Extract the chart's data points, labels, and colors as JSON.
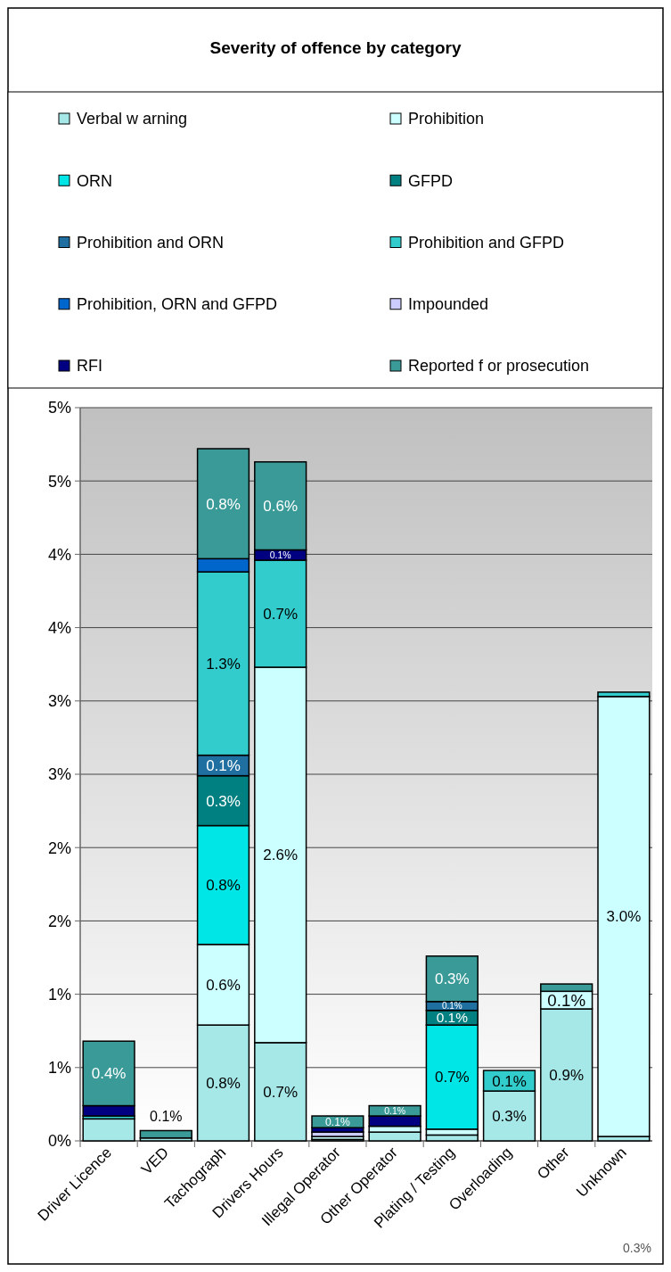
{
  "chart_data": {
    "type": "bar",
    "title": "Severity of offence by category",
    "stacked": true,
    "legend": "top",
    "grid": "y",
    "categories": [
      "Driver Licence",
      "VED",
      "Tachograph",
      "Drivers Hours",
      "Illegal Operator",
      "Other Operator",
      "Plating / Testing",
      "Overloading",
      "Other",
      "Unknown"
    ],
    "ylim": [
      0,
      5
    ],
    "yticks": [
      {
        "value": 0,
        "label": "0%"
      },
      {
        "value": 0.5,
        "label": "1%"
      },
      {
        "value": 1,
        "label": "1%"
      },
      {
        "value": 1.5,
        "label": "2%"
      },
      {
        "value": 2,
        "label": "2%"
      },
      {
        "value": 2.5,
        "label": "3%"
      },
      {
        "value": 3,
        "label": "3%"
      },
      {
        "value": 3.5,
        "label": "4%"
      },
      {
        "value": 4,
        "label": "4%"
      },
      {
        "value": 4.5,
        "label": "5%"
      },
      {
        "value": 5,
        "label": "5%"
      }
    ],
    "series": [
      {
        "name": "Verbal w arning",
        "color": "#a6e8e8",
        "values": [
          0.15,
          0.02,
          0.79,
          0.67,
          0.01,
          0.06,
          0.04,
          0.34,
          0.9,
          0.03
        ],
        "value_labels": [
          null,
          null,
          "0.8%",
          "0.7%",
          null,
          null,
          null,
          "0.3%",
          "0.9%",
          null
        ]
      },
      {
        "name": "Prohibition",
        "color": "#ccffff",
        "values": [
          null,
          null,
          0.55,
          2.56,
          0.02,
          0.04,
          0.04,
          null,
          0.12,
          3.0
        ],
        "value_labels": [
          null,
          null,
          "0.6%",
          "2.6%",
          null,
          null,
          null,
          null,
          "0.1%",
          "3.0%"
        ]
      },
      {
        "name": "ORN",
        "color": "#00e6e6",
        "values": [
          null,
          null,
          0.81,
          null,
          null,
          null,
          0.71,
          null,
          null,
          null
        ],
        "value_labels": [
          null,
          null,
          "0.8%",
          null,
          null,
          null,
          "0.7%",
          null,
          null,
          null
        ]
      },
      {
        "name": "GFPD",
        "color": "#008080",
        "values": [
          null,
          null,
          0.34,
          null,
          null,
          null,
          0.1,
          null,
          null,
          null
        ],
        "value_labels": [
          null,
          null,
          "0.3%",
          null,
          null,
          null,
          "0.1%",
          null,
          null,
          null
        ]
      },
      {
        "name": "Prohibition and ORN",
        "color": "#1f6fa0",
        "values": [
          null,
          null,
          0.14,
          null,
          null,
          null,
          0.06,
          null,
          null,
          null
        ],
        "value_labels": [
          null,
          null,
          "0.1%",
          null,
          null,
          null,
          "0.1%",
          null,
          null,
          null
        ]
      },
      {
        "name": "Prohibition and GFPD",
        "color": "#33cccc",
        "values": [
          0.02,
          null,
          1.25,
          0.73,
          null,
          null,
          null,
          0.14,
          null,
          0.03
        ],
        "value_labels": [
          null,
          null,
          "1.3%",
          "0.7%",
          null,
          null,
          null,
          "0.1%",
          null,
          null
        ]
      },
      {
        "name": "Prohibition, ORN and GFPD",
        "color": "#0066cc",
        "values": [
          null,
          null,
          0.09,
          null,
          null,
          null,
          null,
          null,
          null,
          null
        ]
      },
      {
        "name": "Impounded",
        "color": "#ccccff",
        "values": [
          null,
          null,
          null,
          null,
          0.03,
          null,
          null,
          null,
          null,
          null
        ]
      },
      {
        "name": "RFI",
        "color": "#000080",
        "values": [
          0.07,
          null,
          null,
          0.07,
          0.03,
          0.07,
          null,
          null,
          null,
          null
        ],
        "value_labels": [
          null,
          null,
          null,
          "0.1%",
          null,
          null,
          null,
          null,
          null,
          null
        ]
      },
      {
        "name": "Reported f or prosecution",
        "color": "#3a9a98",
        "values": [
          0.44,
          0.05,
          0.75,
          0.6,
          0.08,
          0.07,
          0.31,
          null,
          0.05,
          null
        ],
        "value_labels": [
          "0.4%",
          "0.1%",
          "0.8%",
          "0.6%",
          "0.1%",
          "0.1%",
          "0.3%",
          null,
          null,
          null
        ]
      }
    ],
    "annotations": [
      "0.3%"
    ]
  }
}
